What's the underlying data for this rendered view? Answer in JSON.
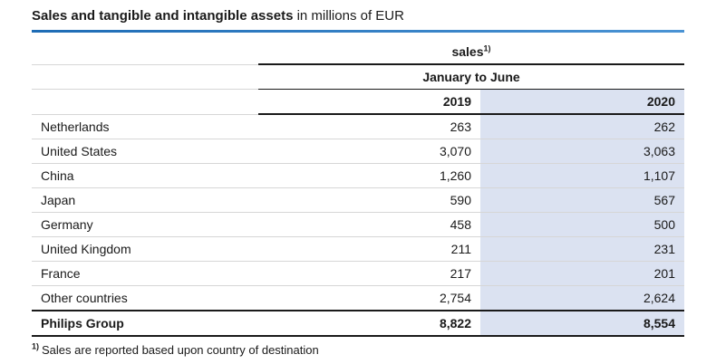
{
  "title": {
    "bold": "Sales and tangible and intangible assets",
    "unit": " in millions of EUR"
  },
  "table": {
    "group_header": "sales",
    "group_header_sup": "1)",
    "period_header": "January to June",
    "columns": [
      "2019",
      "2020"
    ],
    "rows": [
      {
        "label": "Netherlands",
        "v2019": "263",
        "v2020": "262"
      },
      {
        "label": "United States",
        "v2019": "3,070",
        "v2020": "3,063"
      },
      {
        "label": "China",
        "v2019": "1,260",
        "v2020": "1,107"
      },
      {
        "label": "Japan",
        "v2019": "590",
        "v2020": "567"
      },
      {
        "label": "Germany",
        "v2019": "458",
        "v2020": "500"
      },
      {
        "label": "United Kingdom",
        "v2019": "211",
        "v2020": "231"
      },
      {
        "label": "France",
        "v2019": "217",
        "v2020": "201"
      },
      {
        "label": "Other countries",
        "v2019": "2,754",
        "v2020": "2,624"
      }
    ],
    "total_row": {
      "label": "Philips Group",
      "v2019": "8,822",
      "v2020": "8,554"
    }
  },
  "footnote": {
    "sup": "1)",
    "text": "Sales are reported based upon country of destination"
  },
  "colors": {
    "accent_blue": "#1e6cb5",
    "highlight_column": "#dbe2f1"
  }
}
